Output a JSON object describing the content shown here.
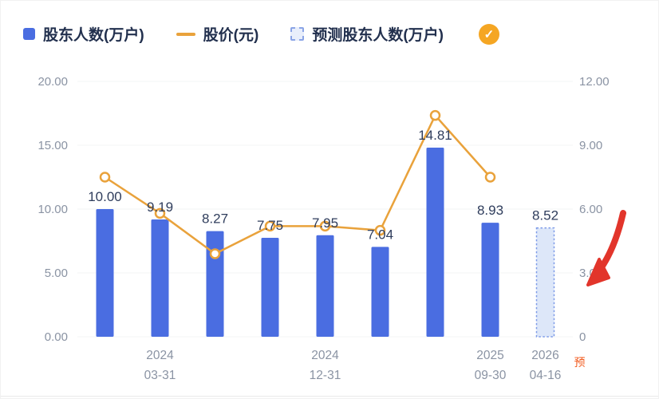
{
  "legend": {
    "items": [
      {
        "label": "股东人数(万户)",
        "marker": "blue-square"
      },
      {
        "label": "股价(元)",
        "marker": "orange-dash"
      },
      {
        "label": "预测股东人数(万户)",
        "marker": "dotted-square"
      }
    ],
    "check_badge": "✓"
  },
  "colors": {
    "bar": "#4a6de1",
    "bar_forecast_fill": "#dde7f9",
    "bar_forecast_border": "#7e9be8",
    "line": "#e9a23b",
    "label": "#2f3d5c",
    "axis": "#8a93a3",
    "grid": "#f3f4f6",
    "annotation": "#e2352b",
    "forecast_tag_color": "#f25a1d"
  },
  "chart_data": {
    "type": "bar",
    "subtype": "bar+line combo with forecast bar",
    "categories": [
      "",
      "2024 03-31",
      "",
      "",
      "2024 12-31",
      "",
      "",
      "2025 09-30",
      "2026 04-16"
    ],
    "series": [
      {
        "name": "股东人数(万户)",
        "type": "bar",
        "axis": "left",
        "values": [
          10.0,
          9.19,
          8.27,
          7.75,
          7.95,
          7.04,
          14.81,
          8.93,
          null
        ]
      },
      {
        "name": "预测股东人数(万户)",
        "type": "bar",
        "style": "forecast-dashed",
        "axis": "left",
        "values": [
          null,
          null,
          null,
          null,
          null,
          null,
          null,
          null,
          8.52
        ]
      },
      {
        "name": "股价(元)",
        "type": "line",
        "axis": "right",
        "values": [
          7.5,
          5.8,
          3.9,
          5.2,
          5.2,
          5.0,
          10.4,
          7.5,
          null
        ]
      }
    ],
    "bar_labels": [
      "10.00",
      "9.19",
      "8.27",
      "7.75",
      "7.95",
      "7.04",
      "14.81",
      "8.93",
      "8.52"
    ],
    "left_axis": {
      "min": 0,
      "max": 20,
      "ticks": [
        {
          "v": 20,
          "label": "20.00"
        },
        {
          "v": 15,
          "label": "15.00"
        },
        {
          "v": 10,
          "label": "10.00"
        },
        {
          "v": 5,
          "label": "5.00"
        },
        {
          "v": 0,
          "label": "0.00"
        }
      ]
    },
    "right_axis": {
      "min": 0,
      "max": 12,
      "ticks": [
        {
          "v": 12,
          "label": "12.00"
        },
        {
          "v": 9,
          "label": "9.00"
        },
        {
          "v": 6,
          "label": "6.00"
        },
        {
          "v": 3,
          "label": "3.00"
        },
        {
          "v": 0,
          "label": "0"
        }
      ]
    },
    "x_ticks": [
      {
        "index": 1,
        "lines": [
          "2024",
          "03-31"
        ]
      },
      {
        "index": 4,
        "lines": [
          "2024",
          "12-31"
        ]
      },
      {
        "index": 7,
        "lines": [
          "2025",
          "09-30"
        ]
      },
      {
        "index": 8,
        "lines": [
          "2026",
          "04-16"
        ]
      }
    ],
    "forecast_tag": "预",
    "forecast_index": 8,
    "legend_position": "top",
    "grid": "faint-horizontal"
  }
}
